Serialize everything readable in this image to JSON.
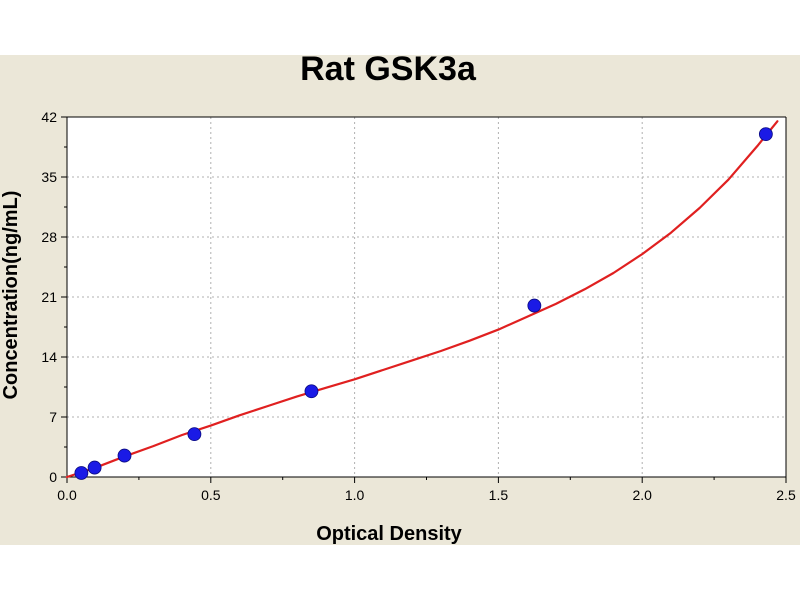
{
  "colors": {
    "page_background": "#ffffff",
    "figure_background": "#ebe7d8",
    "plot_background": "#ffffff",
    "curve": "#e02020",
    "points": "#1a1ae6"
  },
  "chart_data": {
    "type": "scatter",
    "title": "Rat GSK3a",
    "xlabel": "Optical Density",
    "ylabel": "Concentration(ng/mL)",
    "xlim": [
      0,
      2.5
    ],
    "ylim": [
      0,
      42
    ],
    "xticks": [
      "0.0",
      "0.5",
      "1.0",
      "1.5",
      "2.0",
      "2.5"
    ],
    "yticks": [
      "0",
      "7",
      "14",
      "21",
      "28",
      "35",
      "42"
    ],
    "grid": true,
    "series": [
      {
        "type": "scatter",
        "x": [
          0.05,
          0.096,
          0.2,
          0.443,
          0.85,
          1.625,
          2.43
        ],
        "y": [
          0.47,
          1.1,
          2.5,
          5,
          10,
          20,
          40
        ]
      },
      {
        "type": "line",
        "x": [
          0.0,
          0.1,
          0.2,
          0.3,
          0.4,
          0.5,
          0.6,
          0.7,
          0.8,
          0.9,
          1.0,
          1.1,
          1.2,
          1.3,
          1.4,
          1.5,
          1.6,
          1.7,
          1.8,
          1.9,
          2.0,
          2.1,
          2.2,
          2.3,
          2.4,
          2.47
        ],
        "y": [
          0.0,
          1.1,
          2.4,
          3.6,
          4.9,
          6.0,
          7.2,
          8.3,
          9.4,
          10.4,
          11.4,
          12.5,
          13.6,
          14.7,
          15.9,
          17.2,
          18.7,
          20.2,
          21.9,
          23.8,
          26.0,
          28.5,
          31.4,
          34.7,
          38.6,
          41.5
        ]
      }
    ]
  }
}
